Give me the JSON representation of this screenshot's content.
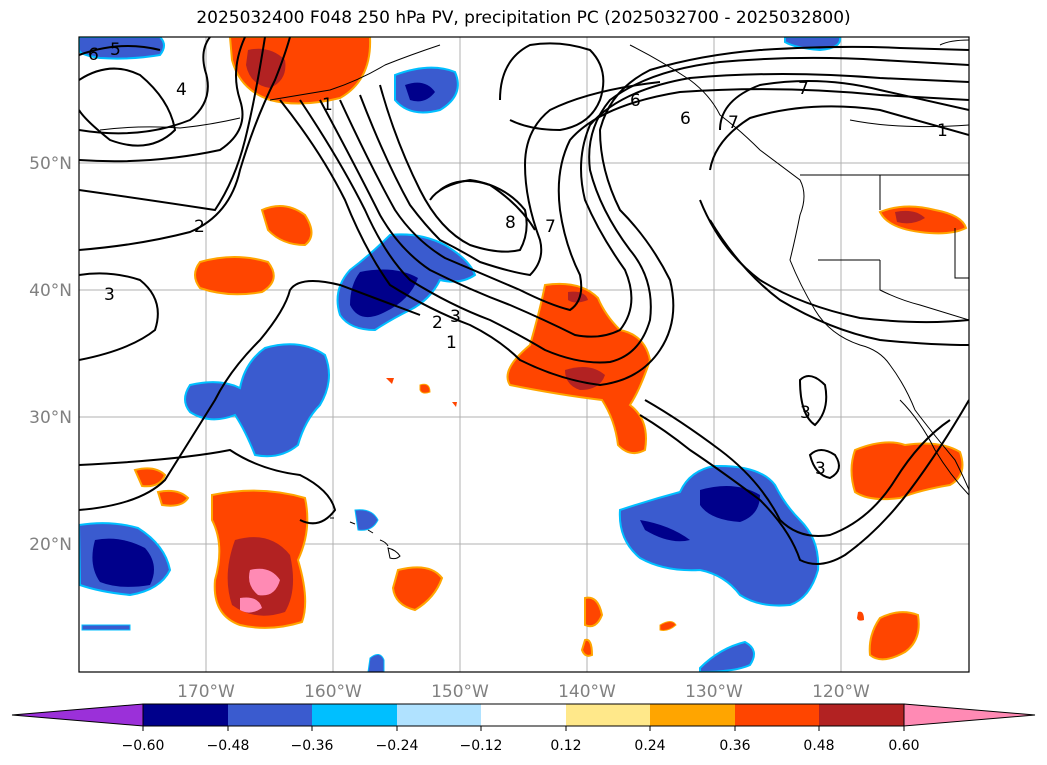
{
  "title": "2025032400 F048 250 hPa PV, precipitation PC (2025032700 - 2025032800)",
  "lat_labels": [
    "50°N",
    "40°N",
    "30°N",
    "20°N"
  ],
  "lon_labels": [
    "170°W",
    "160°W",
    "150°W",
    "140°W",
    "130°W",
    "120°W"
  ],
  "colorbar": {
    "tick_labels": [
      "−0.60",
      "−0.48",
      "−0.36",
      "−0.24",
      "−0.12",
      "0.12",
      "0.24",
      "0.36",
      "0.48",
      "0.60"
    ],
    "colors": [
      "#9b30d9",
      "#00008b",
      "#3a5bcf",
      "#00bfff",
      "#b0e2ff",
      "#ffffff",
      "#ffe88a",
      "#ffa500",
      "#ff4500",
      "#b22222",
      "#ff8ab4"
    ]
  },
  "pv_contour_labels": [
    "6",
    "5",
    "4",
    "2",
    "3",
    "1",
    "6",
    "7",
    "8",
    "7",
    "2",
    "3",
    "1",
    "6",
    "7",
    "1",
    "3",
    "3"
  ],
  "region": "North Pacific and western North America"
}
